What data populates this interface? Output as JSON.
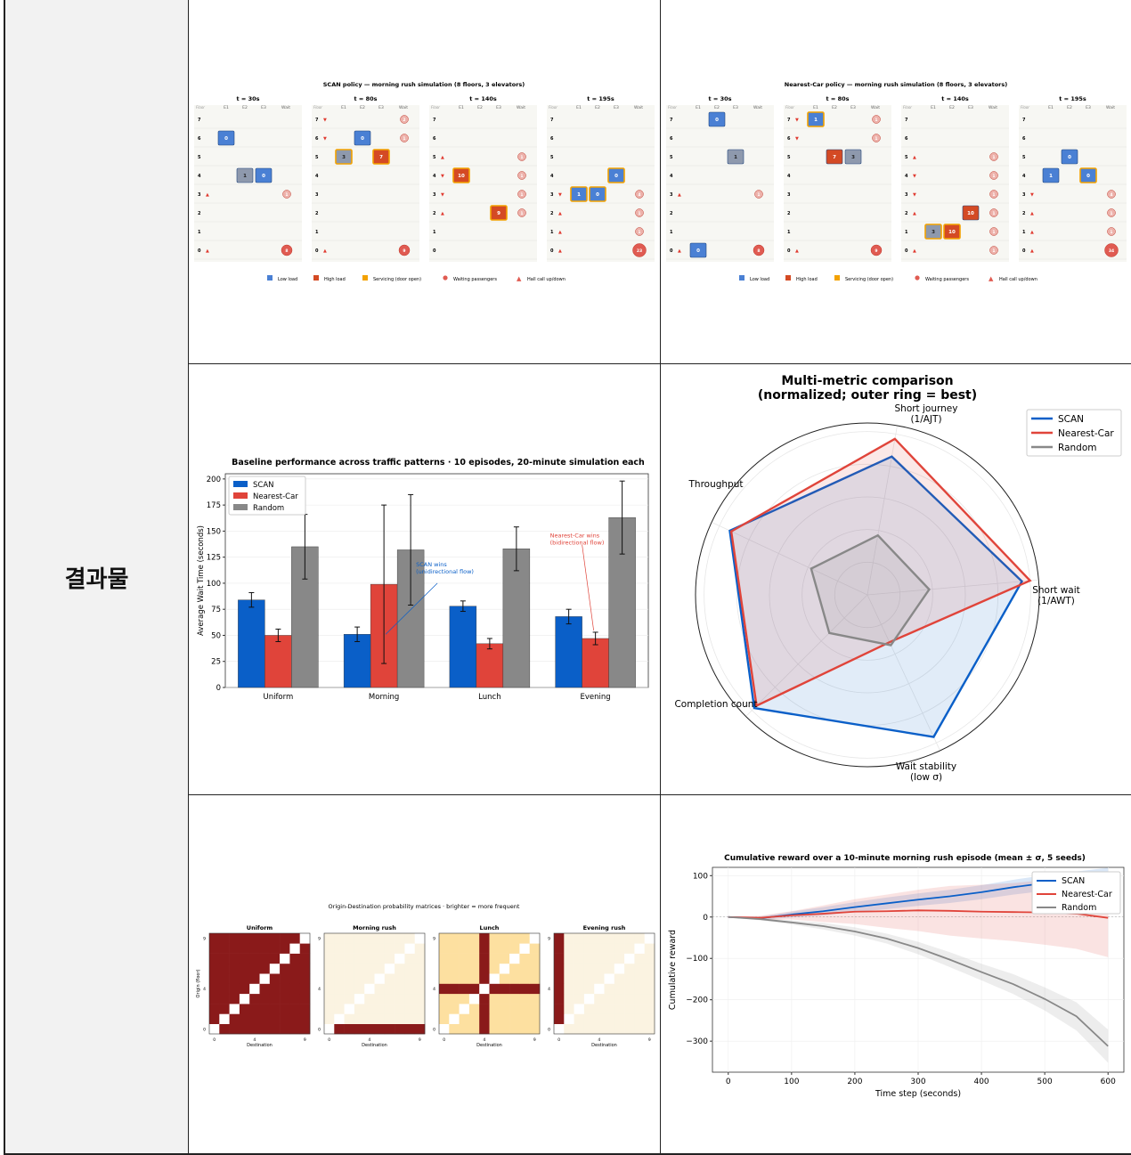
{
  "side_label": "결과물",
  "elevator_panels": [
    {
      "title": "SCAN policy — morning rush simulation (8 floors, 3 elevators)",
      "snapshots": [
        {
          "time": "t = 30s",
          "cars": [
            {
              "col": 1,
              "floor": 6,
              "load": "0",
              "state": "low"
            },
            {
              "col": 2,
              "floor": 4,
              "load": "1",
              "state": "mid"
            },
            {
              "col": 3,
              "floor": 4,
              "load": "0",
              "state": "low"
            }
          ],
          "calls": [
            {
              "floor": 3,
              "dir": "up"
            },
            {
              "floor": 0,
              "dir": "up"
            }
          ],
          "waits": [
            {
              "floor": 3,
              "n": "1"
            },
            {
              "floor": 0,
              "n": "8"
            }
          ]
        },
        {
          "time": "t = 80s",
          "cars": [
            {
              "col": 1,
              "floor": 5,
              "load": "3",
              "state": "mid-serv"
            },
            {
              "col": 2,
              "floor": 6,
              "load": "0",
              "state": "low"
            },
            {
              "col": 3,
              "floor": 5,
              "load": "7",
              "state": "high-serv"
            }
          ],
          "calls": [
            {
              "floor": 7,
              "dir": "down"
            },
            {
              "floor": 6,
              "dir": "down"
            },
            {
              "floor": 0,
              "dir": "up"
            }
          ],
          "waits": [
            {
              "floor": 7,
              "n": "2"
            },
            {
              "floor": 6,
              "n": "1"
            },
            {
              "floor": 0,
              "n": "9"
            }
          ]
        },
        {
          "time": "t = 140s",
          "cars": [
            {
              "col": 1,
              "floor": 4,
              "load": "10",
              "state": "high-serv"
            },
            {
              "col": 3,
              "floor": 2,
              "load": "9",
              "state": "high-serv"
            }
          ],
          "calls": [
            {
              "floor": 5,
              "dir": "up"
            },
            {
              "floor": 4,
              "dir": "down"
            },
            {
              "floor": 3,
              "dir": "down"
            },
            {
              "floor": 2,
              "dir": "up"
            }
          ],
          "waits": [
            {
              "floor": 5,
              "n": "1"
            },
            {
              "floor": 4,
              "n": "1"
            },
            {
              "floor": 3,
              "n": "1"
            },
            {
              "floor": 2,
              "n": "1"
            }
          ]
        },
        {
          "time": "t = 195s",
          "cars": [
            {
              "col": 3,
              "floor": 4,
              "load": "0",
              "state": "low-serv"
            },
            {
              "col": 1,
              "floor": 3,
              "load": "1",
              "state": "low-serv"
            },
            {
              "col": 2,
              "floor": 3,
              "load": "0",
              "state": "low-serv"
            }
          ],
          "calls": [
            {
              "floor": 3,
              "dir": "down"
            },
            {
              "floor": 2,
              "dir": "up"
            },
            {
              "floor": 1,
              "dir": "up"
            },
            {
              "floor": 0,
              "dir": "up"
            }
          ],
          "waits": [
            {
              "floor": 3,
              "n": "4"
            },
            {
              "floor": 2,
              "n": "1"
            },
            {
              "floor": 1,
              "n": "1"
            },
            {
              "floor": 0,
              "n": "23"
            }
          ]
        }
      ]
    },
    {
      "title": "Nearest-Car policy — morning rush simulation (8 floors, 3 elevators)",
      "snapshots": [
        {
          "time": "t = 30s",
          "cars": [
            {
              "col": 2,
              "floor": 7,
              "load": "0",
              "state": "low"
            },
            {
              "col": 3,
              "floor": 5,
              "load": "1",
              "state": "mid"
            },
            {
              "col": 1,
              "floor": 0,
              "load": "0",
              "state": "low"
            }
          ],
          "calls": [
            {
              "floor": 3,
              "dir": "up"
            },
            {
              "floor": 0,
              "dir": "up"
            }
          ],
          "waits": [
            {
              "floor": 3,
              "n": "1"
            },
            {
              "floor": 0,
              "n": "8"
            }
          ]
        },
        {
          "time": "t = 80s",
          "cars": [
            {
              "col": 1,
              "floor": 7,
              "load": "1",
              "state": "low-serv"
            },
            {
              "col": 2,
              "floor": 5,
              "load": "7",
              "state": "high"
            },
            {
              "col": 3,
              "floor": 5,
              "load": "3",
              "state": "mid"
            }
          ],
          "calls": [
            {
              "floor": 7,
              "dir": "down"
            },
            {
              "floor": 6,
              "dir": "down"
            },
            {
              "floor": 0,
              "dir": "up"
            }
          ],
          "waits": [
            {
              "floor": 7,
              "n": "1"
            },
            {
              "floor": 6,
              "n": "1"
            },
            {
              "floor": 0,
              "n": "9"
            }
          ]
        },
        {
          "time": "t = 140s",
          "cars": [
            {
              "col": 3,
              "floor": 2,
              "load": "10",
              "state": "high"
            },
            {
              "col": 1,
              "floor": 1,
              "load": "3",
              "state": "mid-serv"
            },
            {
              "col": 2,
              "floor": 1,
              "load": "10",
              "state": "high-serv"
            }
          ],
          "calls": [
            {
              "floor": 5,
              "dir": "up"
            },
            {
              "floor": 4,
              "dir": "down"
            },
            {
              "floor": 3,
              "dir": "down"
            },
            {
              "floor": 2,
              "dir": "up"
            },
            {
              "floor": 0,
              "dir": "up"
            }
          ],
          "waits": [
            {
              "floor": 5,
              "n": "1"
            },
            {
              "floor": 4,
              "n": "1"
            },
            {
              "floor": 3,
              "n": "1"
            },
            {
              "floor": 2,
              "n": "1"
            },
            {
              "floor": 1,
              "n": "1"
            },
            {
              "floor": 0,
              "n": "1"
            }
          ]
        },
        {
          "time": "t = 195s",
          "cars": [
            {
              "col": 2,
              "floor": 5,
              "load": "0",
              "state": "low"
            },
            {
              "col": 1,
              "floor": 4,
              "load": "1",
              "state": "low"
            },
            {
              "col": 3,
              "floor": 4,
              "load": "0",
              "state": "low-serv"
            }
          ],
          "calls": [
            {
              "floor": 3,
              "dir": "down"
            },
            {
              "floor": 2,
              "dir": "up"
            },
            {
              "floor": 1,
              "dir": "up"
            },
            {
              "floor": 0,
              "dir": "up"
            }
          ],
          "waits": [
            {
              "floor": 3,
              "n": "4"
            },
            {
              "floor": 2,
              "n": "1"
            },
            {
              "floor": 1,
              "n": "1"
            },
            {
              "floor": 0,
              "n": "34"
            }
          ]
        }
      ]
    }
  ],
  "elevator_header": {
    "floor": "Floor",
    "e1": "E1",
    "e2": "E2",
    "e3": "E3",
    "wait": "Wait"
  },
  "elevator_legend": [
    "Low load",
    "High load",
    "Servicing (door open)",
    "Waiting passengers",
    "Hall call up/down"
  ],
  "colors": {
    "scan": "#0a5fc8",
    "nearest": "#e0443a",
    "random": "#888888",
    "low": "#4a80d4",
    "high": "#d44a24",
    "servicing": "#f3a200",
    "wait": "#e05b52"
  },
  "chart_data": [
    {
      "type": "bar",
      "title": "Baseline performance across traffic patterns  ·  10 episodes, 20-minute simulation each",
      "ylabel": "Average Wait Time (seconds)",
      "categories": [
        "Uniform",
        "Morning",
        "Lunch",
        "Evening"
      ],
      "ylim": [
        0,
        205
      ],
      "yticks": [
        "0",
        "25",
        "50",
        "75",
        "100",
        "125",
        "150",
        "175",
        "200"
      ],
      "legend": "top-left",
      "series": [
        {
          "name": "SCAN",
          "values": [
            84,
            51,
            78,
            68
          ],
          "err": [
            7,
            7,
            5,
            7
          ]
        },
        {
          "name": "Nearest-Car",
          "values": [
            50,
            99,
            42,
            47
          ],
          "err": [
            6,
            76,
            5,
            6
          ]
        },
        {
          "name": "Random",
          "values": [
            135,
            132,
            133,
            163
          ],
          "err": [
            31,
            53,
            21,
            35
          ]
        }
      ],
      "annotations": [
        {
          "text": "SCAN wins",
          "text2": "(unidirectional flow)",
          "cat": 1,
          "series": 0,
          "color": "#0a5fc8"
        },
        {
          "text": "Nearest-Car wins",
          "text2": "(bidirectional flow)",
          "cat": 3,
          "series": 1,
          "color": "#e0443a"
        }
      ]
    },
    {
      "type": "radar",
      "title": "Multi-metric comparison",
      "subtitle": "(normalized; outer ring = best)",
      "axes": [
        {
          "l1": "Short journey",
          "l2": "(1/AJT)"
        },
        {
          "l1": "Throughput",
          "l2": ""
        },
        {
          "l1": "Completion count",
          "l2": ""
        },
        {
          "l1": "Wait stability",
          "l2": "(low σ)"
        },
        {
          "l1": "Short wait",
          "l2": "(1/AWT)"
        }
      ],
      "legend": "top-right",
      "series": [
        {
          "name": "SCAN",
          "values": [
            0.86,
            0.93,
            0.98,
            0.96,
            0.95
          ]
        },
        {
          "name": "Nearest-Car",
          "values": [
            0.97,
            0.92,
            0.96,
            0.32,
            1.0
          ]
        },
        {
          "name": "Random",
          "values": [
            0.37,
            0.38,
            0.33,
            0.34,
            0.38
          ]
        }
      ]
    },
    {
      "type": "heatmap",
      "title": "Origin-Destination probability matrices  ·  brighter = more frequent",
      "ylabel": "Origin (floor)",
      "xlabel": "Destination",
      "ticks": [
        "0",
        "4",
        "9"
      ],
      "panels": [
        "Uniform",
        "Morning rush",
        "Lunch",
        "Evening rush"
      ]
    },
    {
      "type": "line",
      "title": "Cumulative reward over a 10-minute morning rush episode (mean ± σ, 5 seeds)",
      "xlabel": "Time step (seconds)",
      "ylabel": "Cumulative reward",
      "xlim": [
        -25,
        625
      ],
      "ylim": [
        -375,
        120
      ],
      "xticks": [
        "0",
        "100",
        "200",
        "300",
        "400",
        "500",
        "600"
      ],
      "yticks": [
        "100",
        "0",
        "−100",
        "−200",
        "−300"
      ],
      "legend": "top-right",
      "series": [
        {
          "name": "SCAN",
          "x": [
            0,
            50,
            100,
            150,
            200,
            250,
            300,
            350,
            400,
            450,
            500,
            550,
            600
          ],
          "y": [
            0,
            -3,
            6,
            14,
            24,
            33,
            42,
            50,
            60,
            72,
            82,
            90,
            98
          ],
          "sd": [
            1,
            4,
            7,
            10,
            12,
            14,
            15,
            16,
            17,
            18,
            19,
            20,
            21
          ]
        },
        {
          "name": "Nearest-Car",
          "x": [
            0,
            50,
            100,
            150,
            200,
            250,
            300,
            350,
            400,
            450,
            500,
            550,
            600
          ],
          "y": [
            0,
            -2,
            4,
            8,
            13,
            14,
            16,
            15,
            13,
            12,
            11,
            8,
            -2
          ],
          "sd": [
            1,
            5,
            10,
            20,
            30,
            40,
            50,
            60,
            65,
            70,
            78,
            85,
            95
          ]
        },
        {
          "name": "Random",
          "x": [
            0,
            50,
            100,
            150,
            200,
            250,
            300,
            350,
            400,
            450,
            500,
            550,
            600
          ],
          "y": [
            0,
            -5,
            -13,
            -22,
            -35,
            -52,
            -75,
            -103,
            -133,
            -162,
            -198,
            -240,
            -312
          ],
          "sd": [
            1,
            3,
            5,
            8,
            10,
            12,
            15,
            18,
            20,
            24,
            28,
            34,
            40
          ]
        }
      ]
    }
  ]
}
